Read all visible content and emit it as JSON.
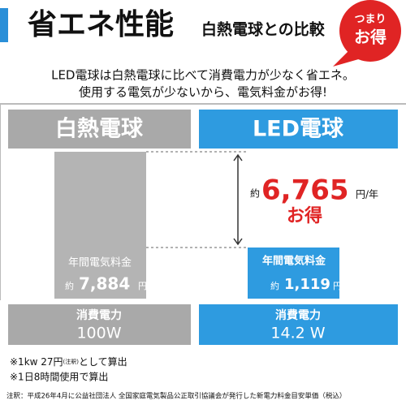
{
  "header": {
    "title": "省エネ性能",
    "subtitle": "白熱電球との比較",
    "badge_top": "つまり",
    "badge_bottom": "お得"
  },
  "intro": [
    "LED電球は白熱電球に比べて消費電力が少なく省エネ。",
    "使用する電気が少ないから、電気料金がお得!"
  ],
  "comparison": {
    "incandescent": {
      "name": "白熱電球",
      "cost_label": "年間電気料金",
      "approx": "約",
      "cost": "7,884",
      "unit": "円",
      "power_label": "消費電力",
      "power": "100W"
    },
    "led": {
      "name": "LED電球",
      "cost_label": "年間電気料金",
      "approx": "約",
      "cost": "1,119",
      "unit": "円",
      "power_label": "消費電力",
      "power": "14.2 W"
    },
    "saving": {
      "approx": "約",
      "amount": "6,765",
      "unit": "円/年",
      "label": "お得"
    }
  },
  "notes": {
    "line1": "※1kw 27円",
    "line1_small": "(注釈)",
    "line1_end": "として算出",
    "line2": "※1日8時間使用で算出",
    "footer": "注釈：平成26年4月に公益社団法人 全国家庭電気製品公正取引協議会が発行した新電力料金目安単価（税込）"
  }
}
